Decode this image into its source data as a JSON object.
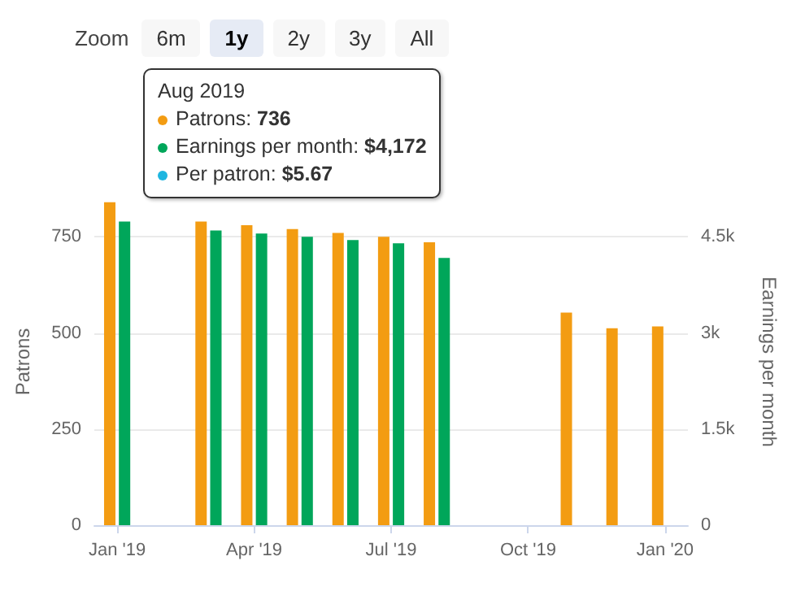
{
  "chart_data": {
    "type": "bar",
    "categories": [
      "Jan '19",
      null,
      null,
      "Apr '19",
      null,
      null,
      "Jul '19",
      null,
      null,
      "Oct '19",
      null,
      null,
      "Jan '20"
    ],
    "series": [
      {
        "color": "#f39c12",
        "values": [
          840,
          null,
          790,
          780,
          770,
          760,
          750,
          736,
          null,
          null,
          553,
          512,
          517
        ]
      },
      {
        "color": "#00a65a",
        "axis": "y2",
        "values": [
          4740,
          null,
          4600,
          4550,
          4500,
          4450,
          4400,
          4170,
          null,
          null,
          null,
          null,
          null
        ]
      }
    ],
    "ylabel": "Patrons",
    "y2label": "Earnings per month",
    "ylim": [
      0,
      850
    ],
    "yticks": [
      0,
      250,
      500,
      750
    ],
    "y2lim": [
      0,
      5100
    ],
    "y2ticks": [
      {
        "value": 0,
        "label": "0"
      },
      {
        "value": 1500,
        "label": "1.5k"
      },
      {
        "value": 3000,
        "label": "3k"
      },
      {
        "value": 4500,
        "label": "4.5k"
      }
    ],
    "grid": "y",
    "annotations": [
      "Zoom",
      "6m",
      "1y",
      "2y",
      "3y",
      "All",
      "Aug 2019",
      "Patrons: 736",
      "Earnings per month: $4,172",
      "Per patron: $5.67"
    ]
  }
}
